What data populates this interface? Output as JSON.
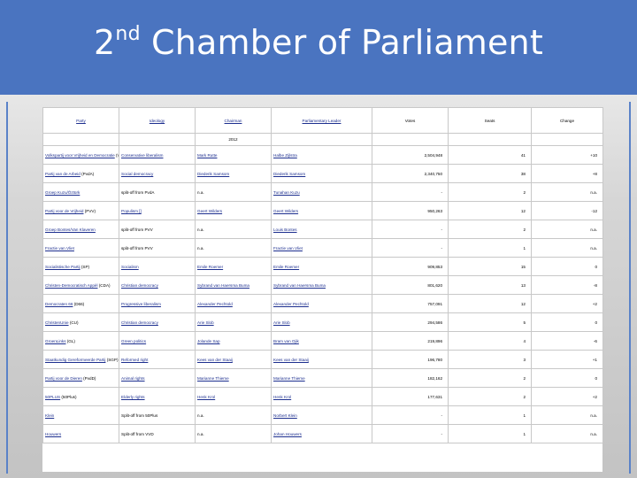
{
  "slide": {
    "title_pre": "2",
    "title_sup": "nd",
    "title_post": " Chamber of Parliament"
  },
  "table": {
    "headers": [
      "Party",
      "Ideology",
      "Chairman",
      "Parliamentary Leader",
      "Votes",
      "Seats",
      "Change"
    ],
    "subheader": "2012",
    "rows": [
      {
        "party_link": "Volkspartij voor Vrijheid en Democratie",
        "party_suffix": " (VVD)",
        "ideology": "Conservative liberalism",
        "chairman": "Mark Rutte",
        "leader": "Halbe Zijlstra",
        "votes": "2,504,948",
        "seats": "41",
        "change": "+10"
      },
      {
        "party_link": "Partij van de Arbeid",
        "party_suffix": " (PvdA)",
        "ideology": "Social democracy",
        "chairman": "Diederik Samsom",
        "leader": "Diederik Samsom",
        "votes": "2,340,750",
        "seats": "38",
        "change": "+8"
      },
      {
        "party_link": "Groep Kuzu/Öztürk",
        "party_suffix": "",
        "ideology": "split-off from PvdA",
        "chairman": "n.a.",
        "leader": "Tunahan Kuzu",
        "votes": "-",
        "seats": "2",
        "change": "n.a."
      },
      {
        "party_link": "Partij voor de Vrijheid",
        "party_suffix": " (PVV)",
        "ideology": "Populism []",
        "chairman": "Geert Wilders",
        "leader": "Geert Wilders",
        "votes": "950,263",
        "seats": "12",
        "change": "-12"
      },
      {
        "party_link": "Groep Bontes/Van Klaveren",
        "party_suffix": "",
        "ideology": "split-off from PVV",
        "chairman": "n.a.",
        "leader": "Louis Bontes",
        "votes": "-",
        "seats": "2",
        "change": "n.a."
      },
      {
        "party_link": "Fractie van Vliet",
        "party_suffix": "",
        "ideology": "split-off from PVV",
        "chairman": "n.a.",
        "leader": "Fractie van Vliet",
        "votes": "-",
        "seats": "1",
        "change": "n.a."
      },
      {
        "party_link": "Socialistische Partij",
        "party_suffix": " (SP)",
        "ideology": "Socialism",
        "chairman": "Emile Roemer",
        "leader": "Emile Roemer",
        "votes": "909,853",
        "seats": "15",
        "change": "0"
      },
      {
        "party_link": "Christen-Democratisch Appèl",
        "party_suffix": " (CDA)",
        "ideology": "Christian democracy",
        "chairman": "Sybrand van Haersma Buma",
        "leader": "Sybrand van Haersma Buma",
        "votes": "801,620",
        "seats": "13",
        "change": "-8"
      },
      {
        "party_link": "Democraten 66",
        "party_suffix": " (D66)",
        "ideology": "Progressive liberalism",
        "chairman": "Alexander Pechtold",
        "leader": "Alexander Pechtold",
        "votes": "757,091",
        "seats": "12",
        "change": "+2"
      },
      {
        "party_link": "ChristenUnie",
        "party_suffix": " (CU)",
        "ideology": "Christian democracy",
        "chairman": "Arie Slob",
        "leader": "Arie Slob",
        "votes": "294,586",
        "seats": "5",
        "change": "0"
      },
      {
        "party_link": "GroenLinks",
        "party_suffix": " (GL)",
        "ideology": "Green politics",
        "chairman": "Jolande Sap",
        "leader": "Bram van Ojik",
        "votes": "219,896",
        "seats": "4",
        "change": "-6"
      },
      {
        "party_link": "Staatkundig Gereformeerde Partij",
        "party_suffix": " (SGP)",
        "ideology": "Reformed right",
        "chairman": "Kees van der Staaij",
        "leader": "Kees van der Staaij",
        "votes": "196,780",
        "seats": "3",
        "change": "+1"
      },
      {
        "party_link": "Partij voor de Dieren",
        "party_suffix": " (PvdD)",
        "ideology": "Animal rights",
        "chairman": "Marianne Thieme",
        "leader": "Marianne Thieme",
        "votes": "182,162",
        "seats": "2",
        "change": "0"
      },
      {
        "party_link": "50PLUS",
        "party_suffix": " (50Plus)",
        "ideology": "Elderly rights",
        "chairman": "Henk Krol",
        "leader": "Henk Krol",
        "votes": "177,631",
        "seats": "2",
        "change": "+2"
      },
      {
        "party_link": "Klein",
        "party_suffix": "",
        "ideology": "Split-off from 50Plus",
        "chairman": "n.a.",
        "leader": "Norbert Klein",
        "votes": "-",
        "seats": "1",
        "change": "n.a."
      },
      {
        "party_link": "Houwers",
        "party_suffix": "",
        "ideology": "Split-off from VVD",
        "chairman": "n.a.",
        "leader": "Johan Houwers",
        "votes": "-",
        "seats": "1",
        "change": "n.a."
      }
    ]
  }
}
